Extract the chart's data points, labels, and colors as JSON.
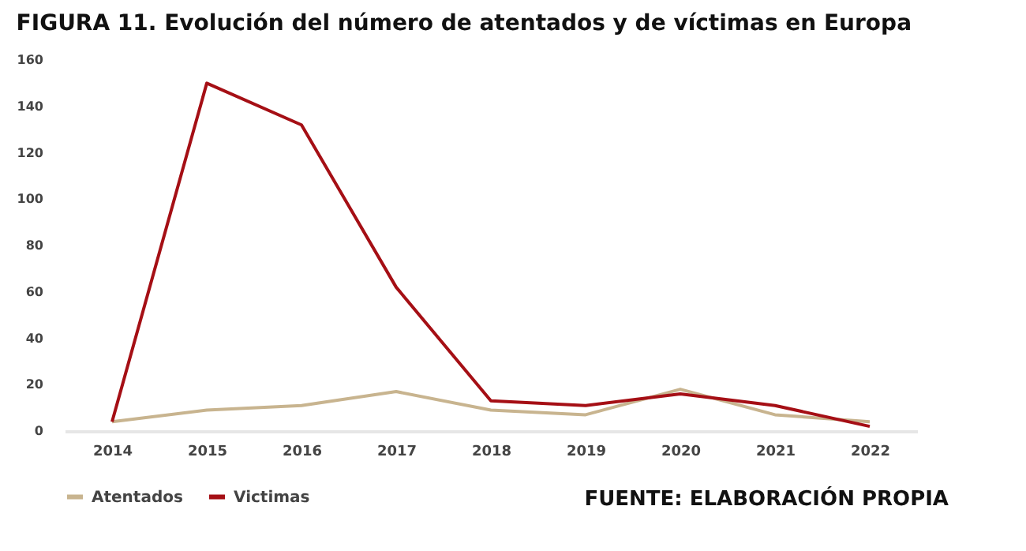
{
  "chart_data": {
    "type": "line",
    "title": "FIGURA 11. Evolución del número de atentados y de víctimas en Europa",
    "categories": [
      "2014",
      "2015",
      "2016",
      "2017",
      "2018",
      "2019",
      "2020",
      "2021",
      "2022"
    ],
    "series": [
      {
        "name": "Atentados",
        "color": "#c8b48f",
        "values": [
          4,
          9,
          11,
          17,
          9,
          7,
          18,
          7,
          4
        ]
      },
      {
        "name": "Victimas",
        "color": "#a50f15",
        "values": [
          4,
          150,
          132,
          62,
          13,
          11,
          16,
          11,
          2
        ]
      }
    ],
    "ylim": [
      0,
      160
    ],
    "yticks": [
      0,
      20,
      40,
      60,
      80,
      100,
      120,
      140,
      160
    ],
    "grid": false,
    "legend": "bottom",
    "marker": "none",
    "line_style": "solid",
    "annotations": [
      "FUENTE: ELABORACIÓN PROPIA"
    ]
  }
}
